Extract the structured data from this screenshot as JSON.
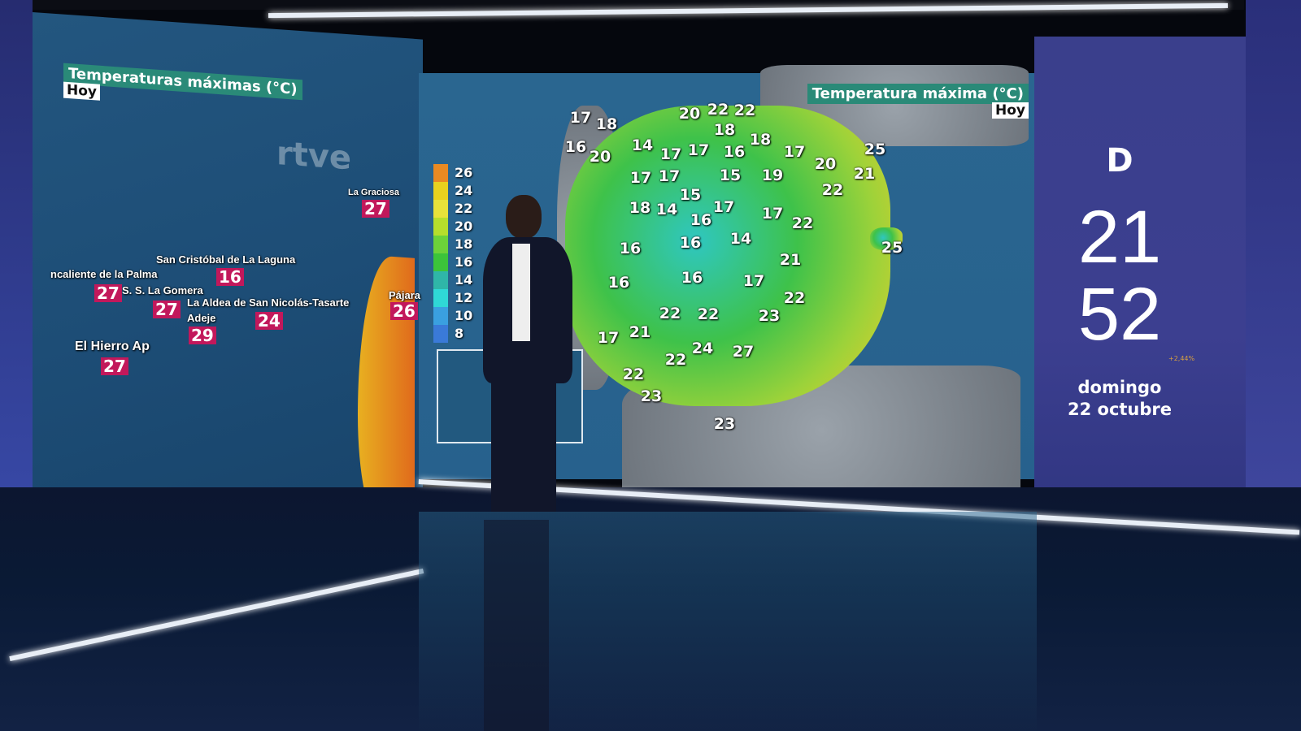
{
  "left_map": {
    "title": "Temperaturas máximas (°C)",
    "day": "Hoy",
    "watermark": "rtve",
    "stations": [
      {
        "name": "La Graciosa",
        "temp": "27"
      },
      {
        "name": "San Cristóbal de La Laguna",
        "temp": "16"
      },
      {
        "name": "ncaliente de la Palma",
        "temp": "27"
      },
      {
        "name": "S. S. La Gomera",
        "temp": "27"
      },
      {
        "name": "La Aldea de San Nicolás-Tasarte",
        "temp": "24"
      },
      {
        "name": "Pájara",
        "temp": "26"
      },
      {
        "name": "Adeje",
        "temp": "29"
      },
      {
        "name": "El Hierro Ap",
        "temp": "27"
      }
    ]
  },
  "center_map": {
    "title": "Temperatura máxima (°C)",
    "day": "Hoy",
    "legend": [
      "26",
      "24",
      "22",
      "20",
      "18",
      "16",
      "14",
      "12",
      "10",
      "8"
    ],
    "legend_colors": [
      "#e98a22",
      "#e8d21e",
      "#e7e23a",
      "#b6de2c",
      "#6cd23a",
      "#3cc43a",
      "#2fb6a8",
      "#2fd8d6",
      "#3aa0e0",
      "#3a7ad8"
    ],
    "temps": [
      "17",
      "18",
      "20",
      "22",
      "22",
      "18",
      "18",
      "16",
      "20",
      "14",
      "17",
      "17",
      "16",
      "17",
      "25",
      "20",
      "21",
      "17",
      "17",
      "15",
      "19",
      "22",
      "15",
      "18",
      "14",
      "17",
      "16",
      "17",
      "22",
      "16",
      "16",
      "14",
      "21",
      "16",
      "16",
      "17",
      "22",
      "22",
      "22",
      "23",
      "21",
      "17",
      "24",
      "27",
      "22",
      "22",
      "23",
      "23",
      "25"
    ]
  },
  "clock": {
    "logo": "D",
    "hour": "21",
    "minute": "52",
    "weekday": "domingo",
    "date": "22 octubre",
    "ticker": "+2,44%"
  }
}
